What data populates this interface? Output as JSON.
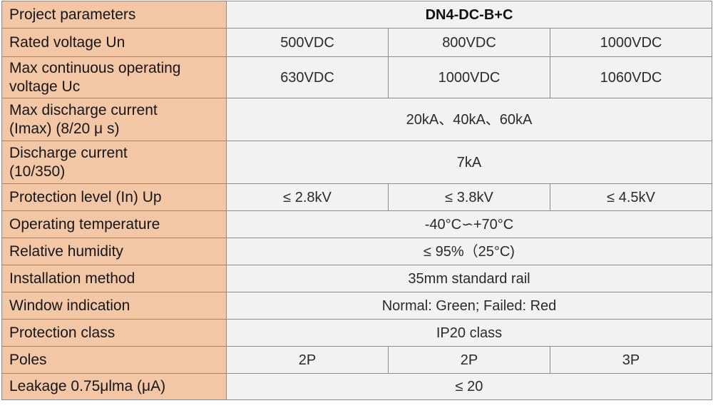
{
  "header": {
    "label": "Project parameters",
    "model": "DN4-DC-B+C"
  },
  "rows": [
    {
      "label": "Rated voltage Un",
      "values": [
        "500VDC",
        "800VDC",
        "1000VDC"
      ]
    },
    {
      "label_lines": [
        "Max continuous operating",
        "voltage Uc"
      ],
      "values": [
        "630VDC",
        "1000VDC",
        "1060VDC"
      ]
    },
    {
      "label_lines": [
        "Max discharge current",
        "(Imax) (8/20 μ s)"
      ],
      "value": "20kA、40kA、60kA"
    },
    {
      "label_lines": [
        "Discharge current",
        "(10/350)"
      ],
      "value": "7kA"
    },
    {
      "label": "Protection level (In) Up",
      "values": [
        "≤ 2.8kV",
        "≤ 3.8kV",
        "≤ 4.5kV"
      ]
    },
    {
      "label": "Operating temperature",
      "value": "-40°C∽+70°C"
    },
    {
      "label": "Relative humidity",
      "value": "≤ 95%（25°C)"
    },
    {
      "label": "Installation method",
      "value": "35mm standard rail"
    },
    {
      "label": "Window indication",
      "value": "Normal: Green; Failed: Red"
    },
    {
      "label": "Protection class",
      "value": "IP20 class"
    },
    {
      "label": "Poles",
      "values": [
        "2P",
        "2P",
        "3P"
      ]
    },
    {
      "label": "Leakage 0.75μlma (μA)",
      "value": "≤ 20"
    }
  ],
  "colors": {
    "label_bg": "#f3c6a6",
    "value_bg": "#f2f2f2",
    "border": "#8c8c8c"
  }
}
